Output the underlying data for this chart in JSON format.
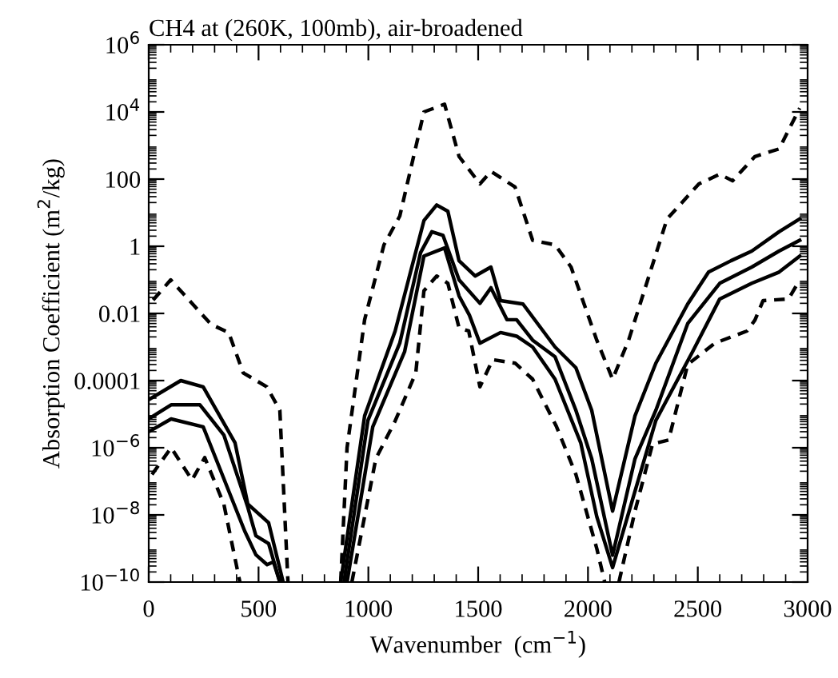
{
  "chart_data": {
    "type": "line",
    "title": "CH4 at (260K, 100mb), air-broadened",
    "xlabel": "Wavenumber  (cm$^{−1}$)",
    "ylabel": "Absorption Coefficient (m$^{2}$/kg)",
    "log": "y",
    "xlim": [
      0,
      3000
    ],
    "xticks": [
      0,
      500,
      1000,
      1500,
      2000,
      2500,
      3000
    ],
    "ylim": [
      1e-10,
      1000000.0
    ],
    "yticks": [
      {
        "value": 1e-10,
        "label": "10$^{−10}$"
      },
      {
        "value": 1e-08,
        "label": "10$^{−8}$"
      },
      {
        "value": 1e-06,
        "label": "10$^{−6}$"
      },
      {
        "value": 0.0001,
        "label": "0.0001"
      },
      {
        "value": 0.01,
        "label": "0.01"
      },
      {
        "value": 1,
        "label": "1"
      },
      {
        "value": 100,
        "label": "100"
      },
      {
        "value": 10000,
        "label": "10$^{4}$"
      },
      {
        "value": 1000000,
        "label": "10$^{6}$"
      }
    ],
    "grid": false,
    "legend": false,
    "marker": "none",
    "series": [
      {
        "color": "#000000",
        "line_style": "dashed",
        "x": [
          20,
          100,
          284,
          364,
          430,
          538,
          597,
          634,
          750,
          874,
          903,
          983,
          1071,
          1143,
          1253,
          1347,
          1413,
          1508,
          1558,
          1668,
          1748,
          1850,
          1923,
          2040,
          2112,
          2185,
          2360,
          2505,
          2600,
          2658,
          2760,
          2870,
          2964
        ],
        "values": [
          0.025,
          0.1,
          0.0047,
          0.0027,
          0.00017,
          6.5e-05,
          1.3e-05,
          1e-10,
          null,
          1e-10,
          1e-06,
          0.0065,
          1.1,
          7.9,
          10000,
          17000,
          470,
          72,
          170,
          58,
          1.5,
          1.1,
          0.24,
          0.0016,
          0.00011,
          0.0016,
          6.5,
          72,
          140,
          89,
          470,
          790,
          13000
        ]
      },
      {
        "color": "#000000",
        "line_style": "solid",
        "x": [
          0,
          146,
          248,
          393,
          451,
          546,
          612,
          750,
          874,
          983,
          1122,
          1253,
          1311,
          1362,
          1413,
          1486,
          1558,
          1602,
          1704,
          1850,
          1945,
          2017,
          2112,
          2214,
          2309,
          2454,
          2549,
          2651,
          2746,
          2870,
          2964
        ],
        "values": [
          2.7e-05,
          0.0001,
          6.5e-05,
          1.4e-06,
          2.1e-08,
          5.8e-09,
          1e-10,
          null,
          1e-10,
          8.9e-06,
          0.003,
          5.8,
          17,
          11,
          0.37,
          0.13,
          0.24,
          0.024,
          0.019,
          0.001,
          0.00024,
          1.3e-05,
          1.3e-08,
          8.9e-06,
          0.00033,
          0.019,
          0.17,
          0.37,
          0.72,
          2.7,
          6.5
        ]
      },
      {
        "color": "#000000",
        "line_style": "solid",
        "x": [
          0,
          102,
          233,
          342,
          451,
          488,
          546,
          597,
          750,
          889,
          998,
          1143,
          1238,
          1289,
          1340,
          1413,
          1508,
          1558,
          1631,
          1675,
          1748,
          1850,
          1945,
          2017,
          2112,
          2214,
          2309,
          2454,
          2600,
          2746,
          2870,
          2964
        ],
        "values": [
          7.2e-06,
          1.9e-05,
          1.9e-05,
          2.4e-06,
          1.7e-08,
          2.4e-09,
          1.4e-09,
          1e-10,
          null,
          1e-10,
          6.5e-06,
          0.0013,
          0.65,
          2.7,
          2.1,
          0.1,
          0.02,
          0.058,
          0.0065,
          0.0065,
          0.0016,
          0.00051,
          1.3e-05,
          4.7e-07,
          6.3e-10,
          4.7e-07,
          1.3e-05,
          0.005,
          0.079,
          0.24,
          0.72,
          1.5
        ]
      },
      {
        "color": "#000000",
        "line_style": "solid",
        "x": [
          0,
          102,
          248,
          437,
          488,
          539,
          568,
          597,
          750,
          903,
          1020,
          1165,
          1253,
          1347,
          1413,
          1460,
          1508,
          1602,
          1675,
          1748,
          1850,
          1967,
          2040,
          2112,
          2214,
          2309,
          2476,
          2600,
          2746,
          2870,
          2964
        ],
        "values": [
          3e-06,
          7.2e-06,
          4.2e-06,
          3.3e-09,
          6.5e-10,
          3.3e-10,
          4e-10,
          1e-10,
          null,
          1e-10,
          4.2e-06,
          0.00072,
          0.51,
          0.89,
          0.033,
          0.0089,
          0.0013,
          0.0027,
          0.0021,
          0.001,
          0.00011,
          1.4e-06,
          8.9e-09,
          2.7e-10,
          5.1e-08,
          6.5e-06,
          0.00072,
          0.027,
          0.079,
          0.17,
          0.51
        ]
      },
      {
        "color": "#000000",
        "line_style": "dashed",
        "x": [
          15,
          102,
          197,
          255,
          342,
          415,
          750,
          925,
          1034,
          1122,
          1216,
          1253,
          1311,
          1362,
          1413,
          1457,
          1508,
          1566,
          1668,
          1748,
          1857,
          1945,
          2040,
          2076,
          2110,
          2141,
          2214,
          2294,
          2367,
          2454,
          2578,
          2724,
          2760,
          2797,
          2913,
          2964
        ],
        "values": [
          1.6e-07,
          1e-06,
          1.1e-07,
          5.1e-07,
          2.1e-08,
          1e-10,
          null,
          1e-10,
          4.7e-07,
          6.3e-06,
          0.00017,
          0.047,
          0.13,
          0.079,
          0.0037,
          0.003,
          6.5e-05,
          0.00042,
          0.00033,
          0.00011,
          4.2e-06,
          1.6e-07,
          1e-09,
          1e-10,
          null,
          1e-10,
          1.3e-08,
          1.3e-06,
          1.7e-06,
          0.0003,
          0.0013,
          0.003,
          0.0063,
          0.024,
          0.027,
          0.1
        ]
      }
    ]
  }
}
